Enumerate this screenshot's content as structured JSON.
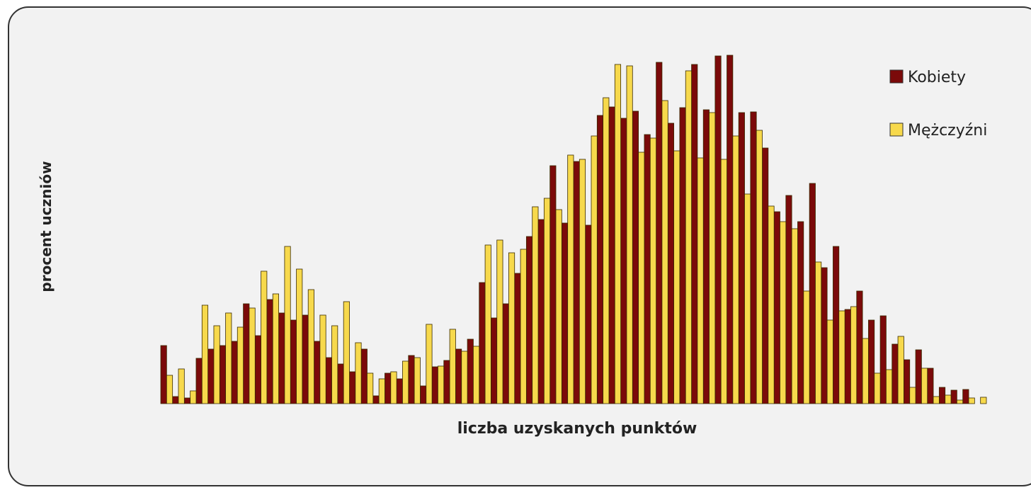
{
  "chart_data": {
    "type": "bar",
    "x_label": "liczba uzyskanych punktów",
    "y_label": "procent uczniów",
    "categories": [
      null,
      null,
      null,
      null,
      null,
      null,
      null,
      null,
      null,
      null,
      null,
      null,
      null,
      null,
      null,
      null,
      null,
      null,
      null,
      null,
      null,
      null,
      null,
      null,
      null,
      null,
      null,
      null,
      null,
      null,
      null,
      null,
      null,
      null,
      null,
      null,
      null,
      null,
      null,
      null,
      null,
      null,
      null,
      null,
      null,
      null,
      null,
      null,
      null,
      null,
      null,
      null,
      null,
      null,
      null,
      null,
      null,
      null,
      null,
      null,
      null,
      null,
      null,
      null,
      null,
      null,
      null,
      null,
      null,
      null
    ],
    "series": [
      {
        "name": "Kobiety",
        "color": "#7b0a0a",
        "values": [
          82,
          10,
          8,
          64,
          77,
          82,
          88,
          141,
          96,
          147,
          128,
          118,
          125,
          88,
          65,
          56,
          45,
          77,
          11,
          43,
          35,
          68,
          25,
          52,
          61,
          77,
          91,
          171,
          121,
          141,
          184,
          236,
          260,
          336,
          255,
          342,
          252,
          407,
          419,
          403,
          413,
          380,
          482,
          396,
          418,
          479,
          415,
          491,
          492,
          411,
          412,
          361,
          271,
          294,
          257,
          311,
          192,
          222,
          133,
          159,
          118,
          124,
          84,
          62,
          76,
          50,
          23,
          19,
          20,
          0
        ]
      },
      {
        "name": "Mężczyźni",
        "color": "#f7d94c",
        "values": [
          40,
          49,
          18,
          139,
          110,
          128,
          108,
          135,
          187,
          155,
          222,
          190,
          161,
          125,
          110,
          144,
          86,
          43,
          35,
          45,
          60,
          65,
          112,
          53,
          105,
          74,
          81,
          224,
          231,
          213,
          218,
          278,
          290,
          274,
          351,
          345,
          378,
          432,
          479,
          477,
          355,
          375,
          428,
          357,
          470,
          347,
          411,
          345,
          378,
          296,
          386,
          279,
          257,
          247,
          159,
          200,
          118,
          131,
          137,
          92,
          43,
          48,
          95,
          23,
          50,
          10,
          12,
          5,
          8,
          9
        ]
      }
    ],
    "ylim": [
      0,
      500
    ],
    "legend": "top-right"
  }
}
